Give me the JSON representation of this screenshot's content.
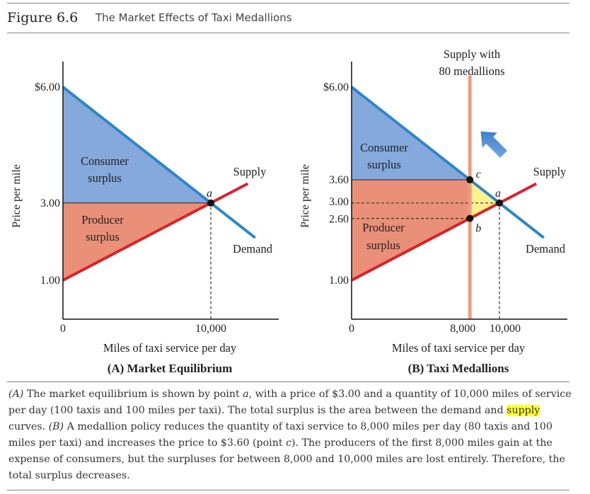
{
  "figure": {
    "number": "Figure 6.6",
    "title": "The Market Effects of Taxi Medallions"
  },
  "chart_data": [
    {
      "type": "line",
      "panel_title": "(A) Market Equilibrium",
      "xlabel": "Miles of taxi service per day",
      "ylabel": "Price per mile",
      "xlim": [
        0,
        18000
      ],
      "ylim": [
        0,
        6.5
      ],
      "x_ticks": [
        {
          "value": 0,
          "label": "0"
        },
        {
          "value": 10000,
          "label": "10,000"
        }
      ],
      "y_ticks": [
        {
          "value": 6,
          "label": "$6.00"
        },
        {
          "value": 3,
          "label": "3.00"
        },
        {
          "value": 1,
          "label": "1.00"
        }
      ],
      "series": [
        {
          "name": "Demand",
          "color": "#2f86c8",
          "points": [
            [
              0,
              6.0
            ],
            [
              13000,
              2.1
            ]
          ]
        },
        {
          "name": "Supply",
          "color": "#d9222a",
          "points": [
            [
              0,
              1.0
            ],
            [
              12500,
              3.5
            ]
          ]
        }
      ],
      "regions": [
        {
          "label": "Consumer surplus",
          "color": "#86a9dd",
          "points": [
            [
              0,
              6.0
            ],
            [
              10000,
              3.0
            ],
            [
              0,
              3.0
            ]
          ]
        },
        {
          "label": "Producer surplus",
          "color": "#ea8f78",
          "points": [
            [
              0,
              3.0
            ],
            [
              10000,
              3.0
            ],
            [
              0,
              1.0
            ]
          ]
        }
      ],
      "points": [
        {
          "label": "a",
          "x": 10000,
          "y": 3.0
        }
      ],
      "guides": [
        {
          "from": [
            10000,
            0
          ],
          "to": [
            10000,
            3.0
          ]
        }
      ]
    },
    {
      "type": "line",
      "panel_title": "(B) Taxi Medallions",
      "xlabel": "Miles of taxi service per day",
      "ylabel": "Price per mile",
      "xlim": [
        0,
        18000
      ],
      "ylim": [
        0,
        6.5
      ],
      "x_ticks": [
        {
          "value": 0,
          "label": "0"
        },
        {
          "value": 8000,
          "label": "8,000"
        },
        {
          "value": 10000,
          "label": "10,000"
        }
      ],
      "y_ticks": [
        {
          "value": 6,
          "label": "$6.00"
        },
        {
          "value": 3.6,
          "label": "3.60"
        },
        {
          "value": 3,
          "label": "3.00"
        },
        {
          "value": 2.6,
          "label": "2.60"
        },
        {
          "value": 1,
          "label": "1.00"
        }
      ],
      "series": [
        {
          "name": "Demand",
          "color": "#2f86c8",
          "points": [
            [
              0,
              6.0
            ],
            [
              13000,
              2.1
            ]
          ]
        },
        {
          "name": "Supply",
          "color": "#d9222a",
          "points": [
            [
              0,
              1.0
            ],
            [
              12500,
              3.5
            ]
          ]
        },
        {
          "name": "Supply with 80 medallions",
          "color": "#ef9c82",
          "points": [
            [
              8000,
              0
            ],
            [
              8000,
              6.3
            ]
          ]
        }
      ],
      "regions": [
        {
          "label": "Consumer surplus",
          "color": "#86a9dd",
          "points": [
            [
              0,
              6.0
            ],
            [
              8000,
              3.6
            ],
            [
              0,
              3.6
            ]
          ]
        },
        {
          "label": "",
          "color": "#ea8f78",
          "points": [
            [
              0,
              3.6
            ],
            [
              8000,
              3.6
            ],
            [
              8000,
              2.6
            ],
            [
              0,
              1.0
            ]
          ]
        },
        {
          "label": "",
          "color": "#fbf28c",
          "points": [
            [
              8000,
              3.6
            ],
            [
              10000,
              3.0
            ],
            [
              8000,
              2.6
            ]
          ]
        }
      ],
      "region_text": "Producer surplus",
      "points": [
        {
          "label": "c",
          "x": 8000,
          "y": 3.6
        },
        {
          "label": "a",
          "x": 10000,
          "y": 3.0
        },
        {
          "label": "b",
          "x": 8000,
          "y": 2.6
        }
      ],
      "guides": [
        {
          "from": [
            0,
            3.0
          ],
          "to": [
            10000,
            3.0
          ]
        },
        {
          "from": [
            0,
            2.6
          ],
          "to": [
            8000,
            2.6
          ]
        },
        {
          "from": [
            10000,
            0
          ],
          "to": [
            10000,
            3.0
          ]
        }
      ],
      "arrow_color": "#3f87cf"
    }
  ],
  "caption": {
    "p1_ref": "(A)",
    "p1_a": " The market equilibrium is shown by point ",
    "p1_pt": "a",
    "p1_b": ", with a price of $3.00 and a quantity of 10,000 miles of service per day (100 taxis and 100 miles per taxi). The total surplus is the area between the demand and ",
    "p1_hl": "supply",
    "p1_c": " curves. ",
    "p2_ref": "(B)",
    "p2_a": " A medallion policy reduces the quantity of taxi service to 8,000 miles per day (80 taxis and 100 miles per taxi) and increases the price to $3.60 (point ",
    "p2_pt": "c",
    "p2_b": "). The producers of the first 8,000 miles gain at the expense of consumers, but the surpluses for between 8,000 and 10,000 miles are lost entirely. Therefore, the total surplus decreases."
  }
}
